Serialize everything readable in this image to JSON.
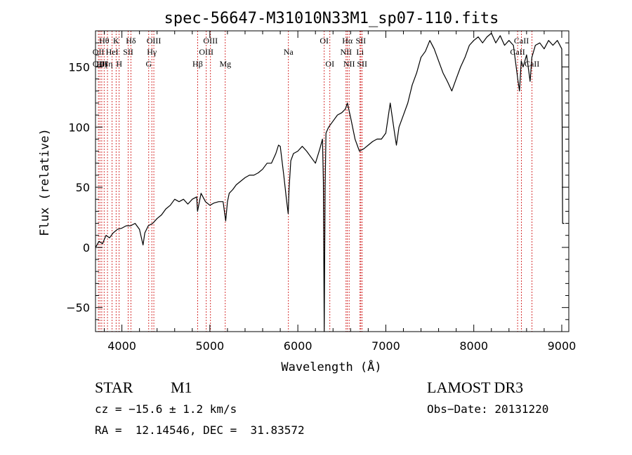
{
  "chart_data": {
    "type": "line",
    "title": "spec-56647-M31010N33M1_sp07-110.fits",
    "xlabel": "Wavelength (Å)",
    "ylabel": "Flux (relative)",
    "xlim": [
      3700,
      9080
    ],
    "ylim": [
      -70,
      180
    ],
    "xticks": [
      4000,
      5000,
      6000,
      7000,
      8000,
      9000
    ],
    "yticks": [
      -50,
      0,
      50,
      100,
      150
    ],
    "grid": false,
    "line_color": "#000000",
    "marker_color": "#cc0000",
    "spectrum": {
      "x": [
        3700,
        3740,
        3780,
        3820,
        3860,
        3900,
        3950,
        4000,
        4050,
        4100,
        4150,
        4200,
        4240,
        4260,
        4300,
        4350,
        4400,
        4450,
        4500,
        4550,
        4600,
        4650,
        4700,
        4750,
        4800,
        4850,
        4860,
        4900,
        4950,
        5000,
        5050,
        5100,
        5150,
        5180,
        5200,
        5220,
        5260,
        5300,
        5350,
        5400,
        5450,
        5500,
        5550,
        5600,
        5650,
        5700,
        5750,
        5780,
        5800,
        5840,
        5870,
        5890,
        5900,
        5920,
        5950,
        6000,
        6050,
        6100,
        6150,
        6200,
        6250,
        6280,
        6290,
        6300,
        6310,
        6320,
        6350,
        6400,
        6450,
        6500,
        6540,
        6563,
        6600,
        6650,
        6700,
        6750,
        6800,
        6850,
        6900,
        6950,
        7000,
        7050,
        7100,
        7120,
        7150,
        7200,
        7250,
        7300,
        7350,
        7400,
        7450,
        7500,
        7550,
        7600,
        7650,
        7700,
        7750,
        7800,
        7850,
        7900,
        7950,
        8000,
        8050,
        8100,
        8150,
        8200,
        8250,
        8300,
        8350,
        8400,
        8450,
        8500,
        8520,
        8540,
        8560,
        8600,
        8640,
        8660,
        8700,
        8750,
        8800,
        8850,
        8900,
        8950,
        9000,
        9010,
        9030
      ],
      "y": [
        0,
        5,
        3,
        10,
        8,
        12,
        15,
        16,
        18,
        18,
        20,
        15,
        2,
        12,
        18,
        20,
        24,
        27,
        32,
        35,
        40,
        38,
        40,
        36,
        40,
        42,
        30,
        45,
        38,
        35,
        37,
        38,
        38,
        22,
        38,
        45,
        48,
        52,
        55,
        58,
        60,
        60,
        62,
        65,
        70,
        70,
        78,
        85,
        84,
        60,
        40,
        28,
        48,
        72,
        78,
        80,
        84,
        80,
        75,
        70,
        82,
        90,
        55,
        -75,
        50,
        95,
        100,
        105,
        110,
        112,
        115,
        120,
        108,
        90,
        80,
        82,
        85,
        88,
        90,
        90,
        95,
        120,
        95,
        85,
        100,
        110,
        120,
        135,
        145,
        158,
        163,
        172,
        165,
        155,
        145,
        138,
        130,
        140,
        150,
        158,
        168,
        172,
        175,
        170,
        175,
        178,
        170,
        176,
        168,
        172,
        168,
        140,
        130,
        155,
        150,
        160,
        138,
        158,
        168,
        170,
        165,
        172,
        168,
        172,
        165,
        20,
        20
      ]
    },
    "line_markers": [
      {
        "wavelength": 3733,
        "label": "OII",
        "row": 2
      },
      {
        "wavelength": 3750,
        "label": "OIII",
        "row": 3
      },
      {
        "wavelength": 3771,
        "label": "Hη",
        "row": 3
      },
      {
        "wavelength": 3798,
        "label": "Hθ",
        "row": 1
      },
      {
        "wavelength": 3836,
        "label": "Hη",
        "row": 3
      },
      {
        "wavelength": 3889,
        "label": "HeI",
        "row": 2
      },
      {
        "wavelength": 3934,
        "label": "K",
        "row": 1
      },
      {
        "wavelength": 3969,
        "label": "H",
        "row": 3
      },
      {
        "wavelength": 4072,
        "label": "SII",
        "row": 2
      },
      {
        "wavelength": 4102,
        "label": "Hδ",
        "row": 1
      },
      {
        "wavelength": 4305,
        "label": "G",
        "row": 3
      },
      {
        "wavelength": 4340,
        "label": "Hγ",
        "row": 2
      },
      {
        "wavelength": 4363,
        "label": "OIII",
        "row": 1
      },
      {
        "wavelength": 4861,
        "label": "Hβ",
        "row": 3
      },
      {
        "wavelength": 4959,
        "label": "OIII",
        "row": 2
      },
      {
        "wavelength": 5007,
        "label": "OIII",
        "row": 1
      },
      {
        "wavelength": 5175,
        "label": "Mg",
        "row": 3
      },
      {
        "wavelength": 5893,
        "label": "Na",
        "row": 2
      },
      {
        "wavelength": 6300,
        "label": "OI",
        "row": 1
      },
      {
        "wavelength": 6364,
        "label": "OI",
        "row": 3
      },
      {
        "wavelength": 6548,
        "label": "NII",
        "row": 2
      },
      {
        "wavelength": 6563,
        "label": "Hα",
        "row": 1
      },
      {
        "wavelength": 6583,
        "label": "NII",
        "row": 3
      },
      {
        "wavelength": 6707,
        "label": "Li",
        "row": 2
      },
      {
        "wavelength": 6716,
        "label": "SII",
        "row": 1
      },
      {
        "wavelength": 6731,
        "label": "SII",
        "row": 3
      },
      {
        "wavelength": 8498,
        "label": "CaII",
        "row": 2
      },
      {
        "wavelength": 8542,
        "label": "CaII",
        "row": 1
      },
      {
        "wavelength": 8662,
        "label": "CaII",
        "row": 3
      }
    ]
  },
  "info": {
    "object_class": "STAR",
    "subclass": "M1",
    "survey": "LAMOST DR3",
    "cz": "cz = −15.6 ± 1.2 km/s",
    "obs_date": "Obs−Date: 20131220",
    "coords": "RA =  12.14546, DEC =  31.83572"
  }
}
